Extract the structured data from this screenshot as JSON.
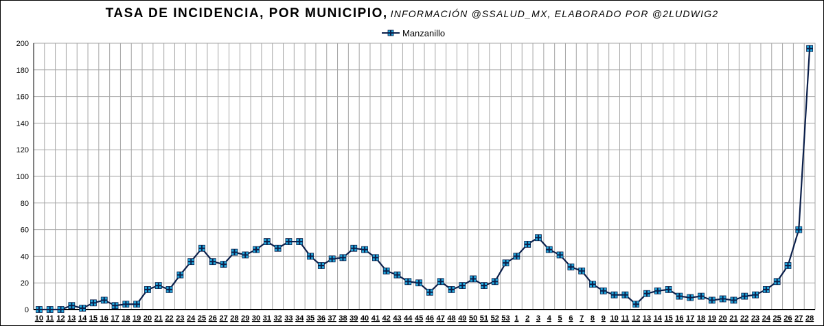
{
  "title": {
    "main": "TASA DE INCIDENCIA, POR MUNICIPIO,",
    "sub": "INFORMACIÓN @SSALUD_MX, ELABORADO POR @2LUDWIG2"
  },
  "colors": {
    "line": "#0b1f4a",
    "marker_fill": "#22a7dc",
    "marker_cross": "#0b1f4a",
    "grid": "#a6a6a6",
    "axis": "#000000"
  },
  "chart_data": {
    "type": "line",
    "title": "TASA DE INCIDENCIA, POR MUNICIPIO, INFORMACIÓN @SSALUD_MX, ELABORADO POR @2LUDWIG2",
    "xlabel": "",
    "ylabel": "",
    "ylim": [
      0,
      200
    ],
    "yticks": [
      0,
      20,
      40,
      60,
      80,
      100,
      120,
      140,
      160,
      180,
      200
    ],
    "grid": true,
    "legend_position": "top-center",
    "categories": [
      "10",
      "11",
      "12",
      "13",
      "14",
      "15",
      "16",
      "17",
      "18",
      "19",
      "20",
      "21",
      "22",
      "23",
      "24",
      "25",
      "26",
      "27",
      "28",
      "29",
      "30",
      "31",
      "32",
      "33",
      "34",
      "35",
      "36",
      "37",
      "38",
      "39",
      "40",
      "41",
      "42",
      "43",
      "44",
      "45",
      "46",
      "47",
      "48",
      "49",
      "50",
      "51",
      "52",
      "53",
      "1",
      "2",
      "3",
      "4",
      "5",
      "6",
      "7",
      "8",
      "9",
      "10",
      "11",
      "12",
      "13",
      "14",
      "15",
      "16",
      "17",
      "18",
      "19",
      "20",
      "21",
      "22",
      "23",
      "24",
      "25",
      "26",
      "27",
      "28"
    ],
    "series": [
      {
        "name": "Manzanillo",
        "values": [
          0,
          0,
          0,
          3,
          1,
          5,
          7,
          3,
          4,
          4,
          15,
          18,
          15,
          26,
          36,
          46,
          36,
          34,
          43,
          41,
          45,
          51,
          46,
          51,
          51,
          40,
          33,
          38,
          39,
          46,
          45,
          39,
          29,
          26,
          21,
          20,
          13,
          21,
          15,
          18,
          23,
          18,
          21,
          35,
          40,
          49,
          54,
          45,
          41,
          32,
          29,
          19,
          14,
          11,
          11,
          4,
          12,
          14,
          15,
          10,
          9,
          10,
          7,
          8,
          7,
          10,
          11,
          15,
          21,
          33,
          60,
          196
        ]
      }
    ]
  }
}
